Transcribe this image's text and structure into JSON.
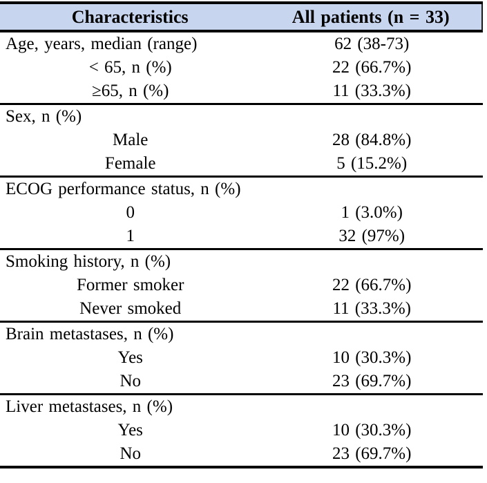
{
  "table": {
    "colors": {
      "header_bg": "#c7d5ef",
      "rule": "#000000"
    },
    "header": {
      "col1": "Characteristics",
      "col2": "All patients (n = 33)"
    },
    "sections": [
      {
        "rows": [
          {
            "label": "Age, years, median (range)",
            "value": "62 (38-73)"
          },
          {
            "label": "< 65, n (%)",
            "value": "22 (66.7%)"
          },
          {
            "label": "≥65, n (%)",
            "value": "11 (33.3%)"
          }
        ]
      },
      {
        "rows": [
          {
            "label": "Sex, n (%)",
            "value": ""
          },
          {
            "label": "Male",
            "value": "28 (84.8%)"
          },
          {
            "label": "Female",
            "value": "5 (15.2%)"
          }
        ]
      },
      {
        "rows": [
          {
            "label": "ECOG performance status, n (%)",
            "value": ""
          },
          {
            "label": "0",
            "value": "1 (3.0%)"
          },
          {
            "label": "1",
            "value": "32 (97%)"
          }
        ]
      },
      {
        "rows": [
          {
            "label": "Smoking history, n (%)",
            "value": ""
          },
          {
            "label": "Former smoker",
            "value": "22 (66.7%)"
          },
          {
            "label": "Never smoked",
            "value": "11 (33.3%)"
          }
        ]
      },
      {
        "rows": [
          {
            "label": "Brain metastases, n (%)",
            "value": ""
          },
          {
            "label": "Yes",
            "value": "10 (30.3%)"
          },
          {
            "label": "No",
            "value": "23 (69.7%)"
          }
        ]
      },
      {
        "rows": [
          {
            "label": "Liver metastases, n (%)",
            "value": ""
          },
          {
            "label": "Yes",
            "value": "10 (30.3%)"
          },
          {
            "label": "No",
            "value": "23 (69.7%)"
          }
        ]
      }
    ]
  }
}
